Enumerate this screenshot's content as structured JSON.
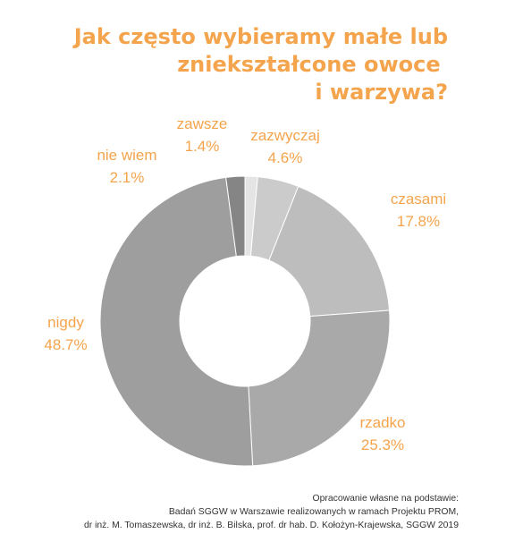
{
  "title_lines": [
    "Jak często wybieramy małe lub",
    "zniekształcone owoce ",
    "i warzywa?"
  ],
  "source_lines": [
    "Opracowanie własne na podstawie:",
    "Badań SGGW w Warszawie realizowanych w ramach Projektu PROM,",
    "dr inż. M. Tomaszewska, dr inż. B. Bilska, prof. dr hab. D. Kołożyn-Krajewska, SGGW 2019"
  ],
  "colors": {
    "accent": "#f4a44c",
    "text": "#333333"
  },
  "chart_data": {
    "type": "pie",
    "donut": true,
    "categories": [
      "zawsze",
      "zazwyczaj",
      "czasami",
      "rzadko",
      "nigdy",
      "nie wiem"
    ],
    "values": [
      1.4,
      4.6,
      17.8,
      25.3,
      48.7,
      2.1
    ],
    "value_labels": [
      "1.4%",
      "4.6%",
      "17.8%",
      "25.3%",
      "48.7%",
      "2.1%"
    ],
    "colors": [
      "#e4e4e4",
      "#cbcbcb",
      "#bdbdbd",
      "#a9a9a9",
      "#9e9e9e",
      "#858585"
    ]
  }
}
